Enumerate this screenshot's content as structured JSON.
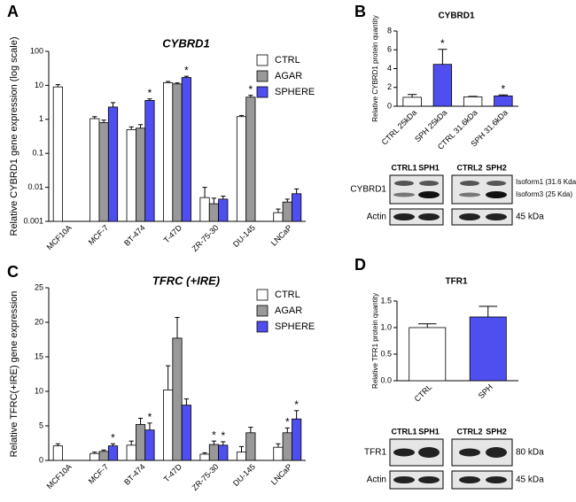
{
  "chart_data": [
    {
      "panel": "A",
      "type": "bar",
      "title": "CYBRD1",
      "y_label": "Relative CYBRD1 gene expression (log scale)",
      "log_scale": true,
      "categories": [
        "MCF10A",
        "MCF-7",
        "BT-474",
        "T-47D",
        "ZR-75-30",
        "DU-145",
        "LNCaP"
      ],
      "series": [
        {
          "name": "CTRL",
          "color": "#ffffff",
          "values": [
            9,
            1.05,
            0.5,
            12,
            0.005,
            1.2,
            0.0018
          ],
          "errors": [
            1.5,
            0.15,
            0.1,
            1,
            0.005,
            0.1,
            0.0005
          ]
        },
        {
          "name": "AGAR",
          "color": "#999999",
          "values": [
            null,
            0.8,
            0.55,
            11,
            0.0033,
            4.5,
            0.0037
          ],
          "errors": [
            null,
            0.15,
            0.15,
            0.8,
            0.0015,
            0.6,
            0.0008
          ]
        },
        {
          "name": "SPHERE",
          "color": "#4f4ff0",
          "values": [
            null,
            2.3,
            3.6,
            17,
            0.0045,
            null,
            0.0065
          ],
          "errors": [
            null,
            0.8,
            0.4,
            1.5,
            0.001,
            null,
            0.0025
          ]
        }
      ],
      "annotations": [
        {
          "text": "*",
          "series": "SPHERE",
          "category": "BT-474"
        },
        {
          "text": "*",
          "series": "SPHERE",
          "category": "T-47D"
        },
        {
          "text": "*",
          "series": "AGAR",
          "category": "DU-145"
        }
      ],
      "ylim": [
        0.001,
        100
      ],
      "yticks": [
        0.001,
        0.01,
        0.1,
        1,
        10,
        100
      ],
      "legend": "upper right"
    },
    {
      "panel": "B",
      "type": "bar",
      "title": "CYBRD1",
      "y_label": "Relative  CYBRD1 protein quantity",
      "categories": [
        "CTRL 25kDa",
        "SPH 25kDa",
        "CTRL 31.6kDa",
        "SPH 31.6kDa"
      ],
      "values": [
        0.95,
        4.45,
        1.0,
        1.1
      ],
      "errors": [
        0.3,
        1.6,
        0.05,
        0.1
      ],
      "colors": [
        "#ffffff",
        "#4f4ff0",
        "#ffffff",
        "#4f4ff0"
      ],
      "annotations": [
        {
          "text": "*",
          "category": "SPH 25kDa"
        },
        {
          "text": "*",
          "category": "SPH 31.6kDa"
        }
      ],
      "ylim": [
        0,
        8
      ],
      "yticks": [
        0,
        2,
        4,
        6,
        8
      ]
    },
    {
      "panel": "C",
      "type": "bar",
      "title": "TFRC (+IRE)",
      "y_label": "Relative TFRC(+IRE) gene expression",
      "categories": [
        "MCF10A",
        "MCF-7",
        "BT-474",
        "T-47D",
        "ZR-75-30",
        "DU-145",
        "LNCaP"
      ],
      "series": [
        {
          "name": "CTRL",
          "color": "#ffffff",
          "values": [
            2.1,
            1.0,
            2.2,
            10.2,
            0.9,
            1.2,
            1.9
          ],
          "errors": [
            0.3,
            0.2,
            0.6,
            3.5,
            0.2,
            0.8,
            0.5
          ]
        },
        {
          "name": "AGAR",
          "color": "#999999",
          "values": [
            null,
            1.3,
            5.2,
            17.7,
            2.3,
            4.0,
            4.0
          ],
          "errors": [
            null,
            0.2,
            0.9,
            3.0,
            0.5,
            0.8,
            0.7
          ]
        },
        {
          "name": "SPHERE",
          "color": "#4f4ff0",
          "values": [
            null,
            2.1,
            4.4,
            8.0,
            2.2,
            null,
            6.0
          ],
          "errors": [
            null,
            0.3,
            1.0,
            0.9,
            0.5,
            null,
            1.2
          ]
        }
      ],
      "annotations": [
        {
          "text": "*",
          "series": "SPHERE",
          "category": "MCF-7"
        },
        {
          "text": "*",
          "series": "SPHERE",
          "category": "BT-474"
        },
        {
          "text": "*",
          "series": "AGAR",
          "category": "ZR-75-30"
        },
        {
          "text": "*",
          "series": "SPHERE",
          "category": "ZR-75-30"
        },
        {
          "text": "*",
          "series": "AGAR",
          "category": "LNCaP"
        },
        {
          "text": "*",
          "series": "SPHERE",
          "category": "LNCaP"
        }
      ],
      "ylim": [
        0,
        25
      ],
      "yticks": [
        0,
        5,
        10,
        15,
        20,
        25
      ],
      "legend": "upper right"
    },
    {
      "panel": "D",
      "type": "bar",
      "title": "TFR1",
      "y_label": "Relative TFR1 protein quantity",
      "categories": [
        "CTRL",
        "SPH"
      ],
      "values": [
        1.0,
        1.2
      ],
      "errors": [
        0.07,
        0.2
      ],
      "colors": [
        "#ffffff",
        "#4f4ff0"
      ],
      "ylim": [
        0,
        1.5
      ],
      "yticks": [
        {
          "value": 0,
          "label": "0.0"
        },
        0.5,
        {
          "value": 1,
          "label": "1.0"
        },
        1.5
      ]
    }
  ],
  "blots": [
    {
      "lanes": [
        "CTRL1",
        "SPH1",
        "CTRL2",
        "SPH2"
      ],
      "rows": [
        "CYBRD1",
        "Actin"
      ],
      "sizes": [
        "Isoform1 (31.6 Kda)",
        "Isoform3 (25 Kda)",
        "45 kDa"
      ]
    },
    {
      "lanes": [
        "CTRL1",
        "SPH1",
        "CTRL2",
        "SPH2"
      ],
      "rows": [
        "TFR1",
        "Actin"
      ],
      "sizes": [
        "80 kDa",
        "45 kDa"
      ]
    }
  ]
}
